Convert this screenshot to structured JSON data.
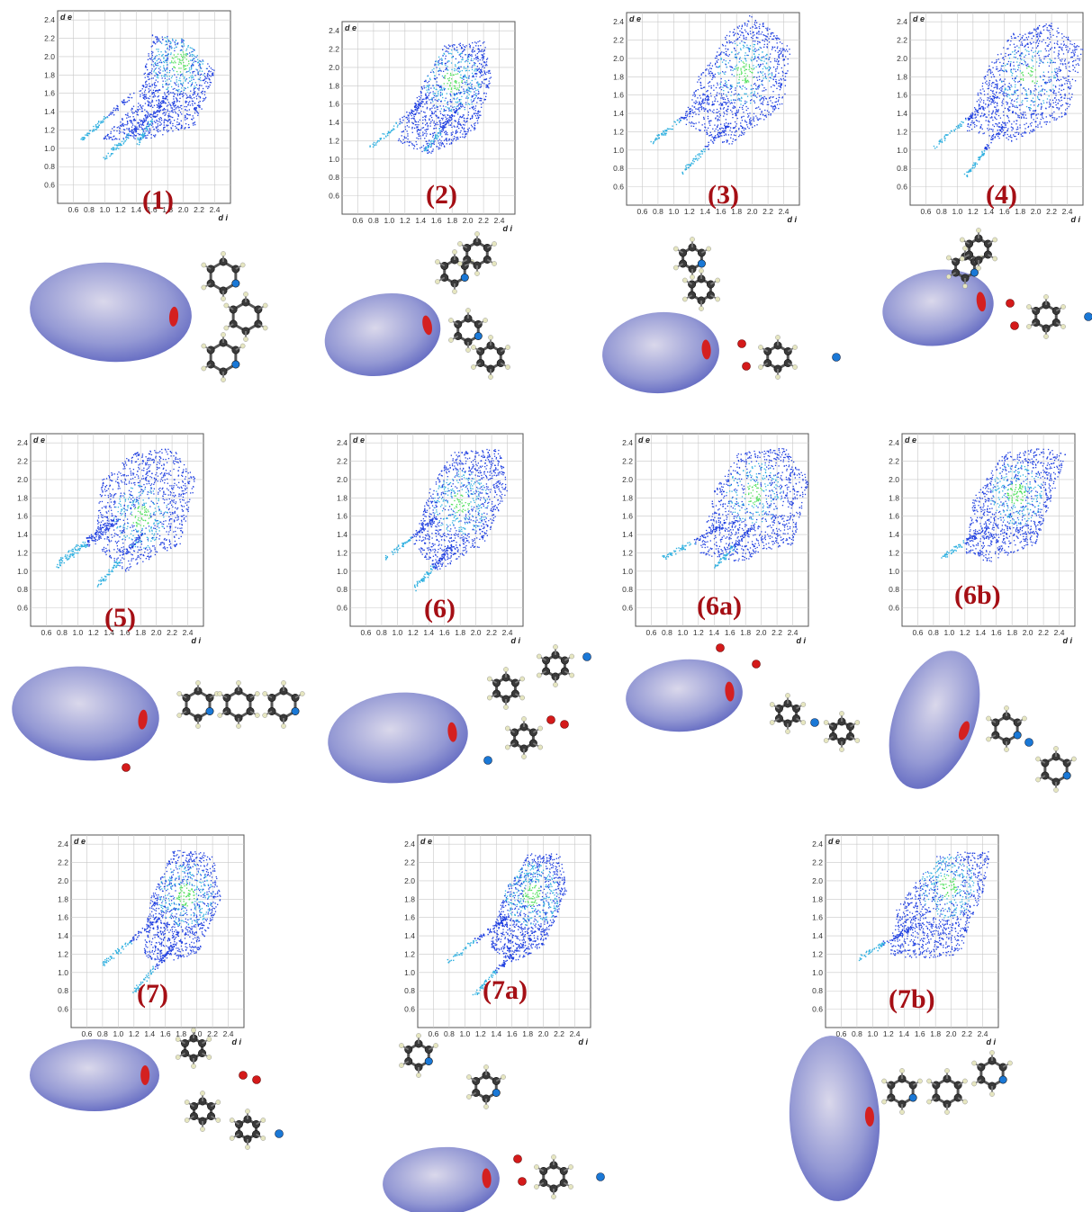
{
  "figure": {
    "panels": [
      {
        "id": "p1",
        "label": "(1)"
      },
      {
        "id": "p2",
        "label": "(2)"
      },
      {
        "id": "p3",
        "label": "(3)"
      },
      {
        "id": "p4",
        "label": "(4)"
      },
      {
        "id": "p5",
        "label": "(5)"
      },
      {
        "id": "p6",
        "label": "(6)"
      },
      {
        "id": "p6a",
        "label": "(6a)"
      },
      {
        "id": "p6b",
        "label": "(6b)"
      },
      {
        "id": "p7",
        "label": "(7)"
      },
      {
        "id": "p7a",
        "label": "(7a)"
      },
      {
        "id": "p7b",
        "label": "(7b)"
      }
    ]
  },
  "chart_data": [
    {
      "type": "scatter",
      "panel": "(1)",
      "xlabel": "d i",
      "ylabel": "d e",
      "xticks": [
        "0.6",
        "0.8",
        "1.0",
        "1.2",
        "1.4",
        "1.6",
        "1.8",
        "2.0",
        "2.2",
        "2.4"
      ],
      "yticks": [
        "0.6",
        "0.8",
        "1.0",
        "1.2",
        "1.4",
        "1.6",
        "1.8",
        "2.0",
        "2.2",
        "2.4"
      ],
      "xlim": [
        0.4,
        2.6
      ],
      "ylim": [
        0.4,
        2.5
      ],
      "grid": true,
      "regions": {
        "body": [
          [
            0.95,
            1.1
          ],
          [
            1.4,
            1.5
          ],
          [
            1.6,
            2.25
          ],
          [
            2.0,
            2.2
          ],
          [
            2.4,
            1.85
          ],
          [
            2.15,
            1.25
          ],
          [
            1.5,
            1.1
          ]
        ],
        "spikes": [
          [
            [
              0.7,
              1.1
            ],
            [
              1.35,
              1.6
            ]
          ],
          [
            [
              1.0,
              0.9
            ],
            [
              1.6,
              1.4
            ]
          ],
          [
            [
              1.4,
              1.05
            ],
            [
              1.8,
              1.6
            ]
          ]
        ],
        "hotspot": [
          1.95,
          1.95
        ]
      }
    },
    {
      "type": "scatter",
      "panel": "(2)",
      "xlabel": "d i",
      "ylabel": "d e",
      "xticks": [
        "0.6",
        "0.8",
        "1.0",
        "1.2",
        "1.4",
        "1.6",
        "1.8",
        "2.0",
        "2.2",
        "2.4"
      ],
      "yticks": [
        "0.6",
        "0.8",
        "1.0",
        "1.2",
        "1.4",
        "1.6",
        "1.8",
        "2.0",
        "2.2",
        "2.4"
      ],
      "xlim": [
        0.4,
        2.6
      ],
      "ylim": [
        0.4,
        2.5
      ],
      "grid": true,
      "regions": {
        "body": [
          [
            1.1,
            1.2
          ],
          [
            1.4,
            1.8
          ],
          [
            1.7,
            2.25
          ],
          [
            2.2,
            2.3
          ],
          [
            2.3,
            1.9
          ],
          [
            2.1,
            1.3
          ],
          [
            1.5,
            1.05
          ]
        ],
        "spikes": [
          [
            [
              0.75,
              1.12
            ],
            [
              1.5,
              1.7
            ]
          ],
          [
            [
              1.4,
              1.05
            ],
            [
              1.9,
              1.6
            ]
          ]
        ],
        "hotspot": [
          1.8,
          1.85
        ]
      }
    },
    {
      "type": "scatter",
      "panel": "(3)",
      "xlabel": "d i",
      "ylabel": "d e",
      "xticks": [
        "0.6",
        "0.8",
        "1.0",
        "1.2",
        "1.4",
        "1.6",
        "1.8",
        "2.0",
        "2.2",
        "2.4"
      ],
      "yticks": [
        "0.6",
        "0.8",
        "1.0",
        "1.2",
        "1.4",
        "1.6",
        "1.8",
        "2.0",
        "2.2",
        "2.4"
      ],
      "xlim": [
        0.4,
        2.6
      ],
      "ylim": [
        0.4,
        2.5
      ],
      "grid": true,
      "regions": {
        "body": [
          [
            1.1,
            1.3
          ],
          [
            1.3,
            1.8
          ],
          [
            1.7,
            2.3
          ],
          [
            2.0,
            2.5
          ],
          [
            2.5,
            2.1
          ],
          [
            2.4,
            1.5
          ],
          [
            1.7,
            1.05
          ]
        ],
        "spikes": [
          [
            [
              0.7,
              1.08
            ],
            [
              1.45,
              1.6
            ]
          ],
          [
            [
              1.1,
              0.75
            ],
            [
              1.7,
              1.3
            ]
          ]
        ],
        "hotspot": [
          1.9,
          1.85
        ]
      }
    },
    {
      "type": "scatter",
      "panel": "(4)",
      "xlabel": "d i",
      "ylabel": "d e",
      "xticks": [
        "0.6",
        "0.8",
        "1.0",
        "1.2",
        "1.4",
        "1.6",
        "1.8",
        "2.0",
        "2.2",
        "2.4"
      ],
      "yticks": [
        "0.6",
        "0.8",
        "1.0",
        "1.2",
        "1.4",
        "1.6",
        "1.8",
        "2.0",
        "2.2",
        "2.4"
      ],
      "xlim": [
        0.4,
        2.6
      ],
      "ylim": [
        0.4,
        2.5
      ],
      "grid": true,
      "regions": {
        "body": [
          [
            1.1,
            1.2
          ],
          [
            1.3,
            1.8
          ],
          [
            1.7,
            2.3
          ],
          [
            2.2,
            2.4
          ],
          [
            2.6,
            2.1
          ],
          [
            2.4,
            1.4
          ],
          [
            1.7,
            1.1
          ]
        ],
        "spikes": [
          [
            [
              0.7,
              1.05
            ],
            [
              1.5,
              1.6
            ]
          ],
          [
            [
              1.1,
              0.72
            ],
            [
              1.6,
              1.3
            ]
          ]
        ],
        "hotspot": [
          1.9,
          1.8
        ]
      }
    },
    {
      "type": "scatter",
      "panel": "(5)",
      "xlabel": "d i",
      "ylabel": "d e",
      "xticks": [
        "0.6",
        "0.8",
        "1.0",
        "1.2",
        "1.4",
        "1.6",
        "1.8",
        "2.0",
        "2.2",
        "2.4"
      ],
      "yticks": [
        "0.6",
        "0.8",
        "1.0",
        "1.2",
        "1.4",
        "1.6",
        "1.8",
        "2.0",
        "2.2",
        "2.4"
      ],
      "xlim": [
        0.4,
        2.6
      ],
      "ylim": [
        0.4,
        2.5
      ],
      "grid": true,
      "regions": {
        "body": [
          [
            1.2,
            1.3
          ],
          [
            1.3,
            2.0
          ],
          [
            1.7,
            2.3
          ],
          [
            2.2,
            2.35
          ],
          [
            2.5,
            2.0
          ],
          [
            2.3,
            1.3
          ],
          [
            1.6,
            1.0
          ]
        ],
        "spikes": [
          [
            [
              0.7,
              1.08
            ],
            [
              1.5,
              1.6
            ]
          ],
          [
            [
              0.72,
              1.05
            ],
            [
              1.5,
              1.55
            ]
          ],
          [
            [
              1.25,
              0.85
            ],
            [
              1.8,
              1.4
            ]
          ]
        ],
        "hotspot": [
          1.8,
          1.6
        ]
      }
    },
    {
      "type": "scatter",
      "panel": "(6)",
      "xlabel": "d i",
      "ylabel": "d e",
      "xticks": [
        "0.6",
        "0.8",
        "1.0",
        "1.2",
        "1.4",
        "1.6",
        "1.8",
        "2.0",
        "2.2",
        "2.4"
      ],
      "yticks": [
        "0.6",
        "0.8",
        "1.0",
        "1.2",
        "1.4",
        "1.6",
        "1.8",
        "2.0",
        "2.2",
        "2.4"
      ],
      "xlim": [
        0.4,
        2.6
      ],
      "ylim": [
        0.4,
        2.5
      ],
      "grid": true,
      "regions": {
        "body": [
          [
            1.2,
            1.3
          ],
          [
            1.4,
            1.9
          ],
          [
            1.7,
            2.3
          ],
          [
            2.3,
            2.35
          ],
          [
            2.4,
            1.9
          ],
          [
            2.1,
            1.3
          ],
          [
            1.5,
            1.0
          ]
        ],
        "spikes": [
          [
            [
              0.85,
              1.15
            ],
            [
              1.5,
              1.6
            ]
          ],
          [
            [
              1.2,
              0.8
            ],
            [
              1.7,
              1.3
            ]
          ]
        ],
        "hotspot": [
          1.8,
          1.75
        ]
      }
    },
    {
      "type": "scatter",
      "panel": "(6a)",
      "xlabel": "d i",
      "ylabel": "d e",
      "xticks": [
        "0.6",
        "0.8",
        "1.0",
        "1.2",
        "1.4",
        "1.6",
        "1.8",
        "2.0",
        "2.2",
        "2.4"
      ],
      "yticks": [
        "0.6",
        "0.8",
        "1.0",
        "1.2",
        "1.4",
        "1.6",
        "1.8",
        "2.0",
        "2.2",
        "2.4"
      ],
      "xlim": [
        0.4,
        2.6
      ],
      "ylim": [
        0.4,
        2.5
      ],
      "grid": true,
      "regions": {
        "body": [
          [
            1.2,
            1.2
          ],
          [
            1.4,
            1.9
          ],
          [
            1.7,
            2.3
          ],
          [
            2.3,
            2.35
          ],
          [
            2.6,
            2.0
          ],
          [
            2.4,
            1.3
          ],
          [
            1.7,
            1.1
          ]
        ],
        "spikes": [
          [
            [
              0.75,
              1.15
            ],
            [
              1.5,
              1.5
            ]
          ],
          [
            [
              1.4,
              1.05
            ],
            [
              1.9,
              1.5
            ]
          ]
        ],
        "hotspot": [
          1.9,
          1.85
        ]
      }
    },
    {
      "type": "scatter",
      "panel": "(6b)",
      "xlabel": "d i",
      "ylabel": "d e",
      "xticks": [
        "0.6",
        "0.8",
        "1.0",
        "1.2",
        "1.4",
        "1.6",
        "1.8",
        "2.0",
        "2.2",
        "2.4"
      ],
      "yticks": [
        "0.6",
        "0.8",
        "1.0",
        "1.2",
        "1.4",
        "1.6",
        "1.8",
        "2.0",
        "2.2",
        "2.4"
      ],
      "xlim": [
        0.4,
        2.6
      ],
      "ylim": [
        0.4,
        2.5
      ],
      "grid": true,
      "regions": {
        "body": [
          [
            1.2,
            1.2
          ],
          [
            1.3,
            1.8
          ],
          [
            1.7,
            2.3
          ],
          [
            2.2,
            2.35
          ],
          [
            2.5,
            2.3
          ],
          [
            2.1,
            1.3
          ],
          [
            1.5,
            1.1
          ]
        ],
        "spikes": [
          [
            [
              0.9,
              1.15
            ],
            [
              1.5,
              1.5
            ]
          ]
        ],
        "hotspot": [
          1.85,
          1.85
        ]
      }
    },
    {
      "type": "scatter",
      "panel": "(7)",
      "xlabel": "d i",
      "ylabel": "d e",
      "xticks": [
        "0.6",
        "0.8",
        "1.0",
        "1.2",
        "1.4",
        "1.6",
        "1.8",
        "2.0",
        "2.2",
        "2.4"
      ],
      "yticks": [
        "0.6",
        "0.8",
        "1.0",
        "1.2",
        "1.4",
        "1.6",
        "1.8",
        "2.0",
        "2.2",
        "2.4"
      ],
      "xlim": [
        0.4,
        2.6
      ],
      "ylim": [
        0.4,
        2.5
      ],
      "grid": true,
      "regions": {
        "body": [
          [
            1.3,
            1.2
          ],
          [
            1.4,
            1.8
          ],
          [
            1.7,
            2.35
          ],
          [
            2.2,
            2.3
          ],
          [
            2.3,
            1.8
          ],
          [
            2.0,
            1.2
          ],
          [
            1.5,
            1.1
          ]
        ],
        "spikes": [
          [
            [
              0.8,
              1.1
            ],
            [
              1.5,
              1.6
            ]
          ],
          [
            [
              1.2,
              0.8
            ],
            [
              1.7,
              1.3
            ]
          ]
        ],
        "hotspot": [
          1.85,
          1.85
        ]
      }
    },
    {
      "type": "scatter",
      "panel": "(7a)",
      "xlabel": "d i",
      "ylabel": "d e",
      "xticks": [
        "0.6",
        "0.8",
        "1.0",
        "1.2",
        "1.4",
        "1.6",
        "1.8",
        "2.0",
        "2.2",
        "2.4"
      ],
      "yticks": [
        "0.6",
        "0.8",
        "1.0",
        "1.2",
        "1.4",
        "1.6",
        "1.8",
        "2.0",
        "2.2",
        "2.4"
      ],
      "xlim": [
        0.4,
        2.6
      ],
      "ylim": [
        0.4,
        2.5
      ],
      "grid": true,
      "regions": {
        "body": [
          [
            1.3,
            1.3
          ],
          [
            1.5,
            1.9
          ],
          [
            1.8,
            2.3
          ],
          [
            2.2,
            2.3
          ],
          [
            2.3,
            1.9
          ],
          [
            2.0,
            1.3
          ],
          [
            1.6,
            1.1
          ]
        ],
        "spikes": [
          [
            [
              0.75,
              1.1
            ],
            [
              1.5,
              1.6
            ]
          ],
          [
            [
              1.1,
              0.75
            ],
            [
              1.7,
              1.3
            ]
          ]
        ],
        "hotspot": [
          1.85,
          1.85
        ]
      }
    },
    {
      "type": "scatter",
      "panel": "(7b)",
      "xlabel": "d i",
      "ylabel": "d e",
      "xticks": [
        "0.6",
        "0.8",
        "1.0",
        "1.2",
        "1.4",
        "1.6",
        "1.8",
        "2.0",
        "2.2",
        "2.4"
      ],
      "yticks": [
        "0.6",
        "0.8",
        "1.0",
        "1.2",
        "1.4",
        "1.6",
        "1.8",
        "2.0",
        "2.2",
        "2.4"
      ],
      "xlim": [
        0.4,
        2.6
      ],
      "ylim": [
        0.4,
        2.5
      ],
      "grid": true,
      "regions": {
        "body": [
          [
            1.2,
            1.2
          ],
          [
            1.3,
            1.7
          ],
          [
            1.8,
            2.3
          ],
          [
            2.5,
            2.35
          ],
          [
            2.4,
            1.9
          ],
          [
            2.1,
            1.2
          ],
          [
            1.5,
            1.15
          ]
        ],
        "spikes": [
          [
            [
              0.8,
              1.15
            ],
            [
              1.5,
              1.5
            ]
          ]
        ],
        "hotspot": [
          1.95,
          1.95
        ]
      }
    }
  ],
  "colors": {
    "label": "#a50f15",
    "point_blue": "#1f3fe0",
    "point_cyan": "#2fb0e0",
    "point_green": "#4fe05a",
    "grid": "#c8c8c8",
    "surface": "#8f94d2",
    "surface_red": "#d42020",
    "atom_c": "#3a3a3a",
    "atom_n": "#1a78d6",
    "atom_o": "#d41a1a",
    "atom_h": "#e6e6c0"
  }
}
